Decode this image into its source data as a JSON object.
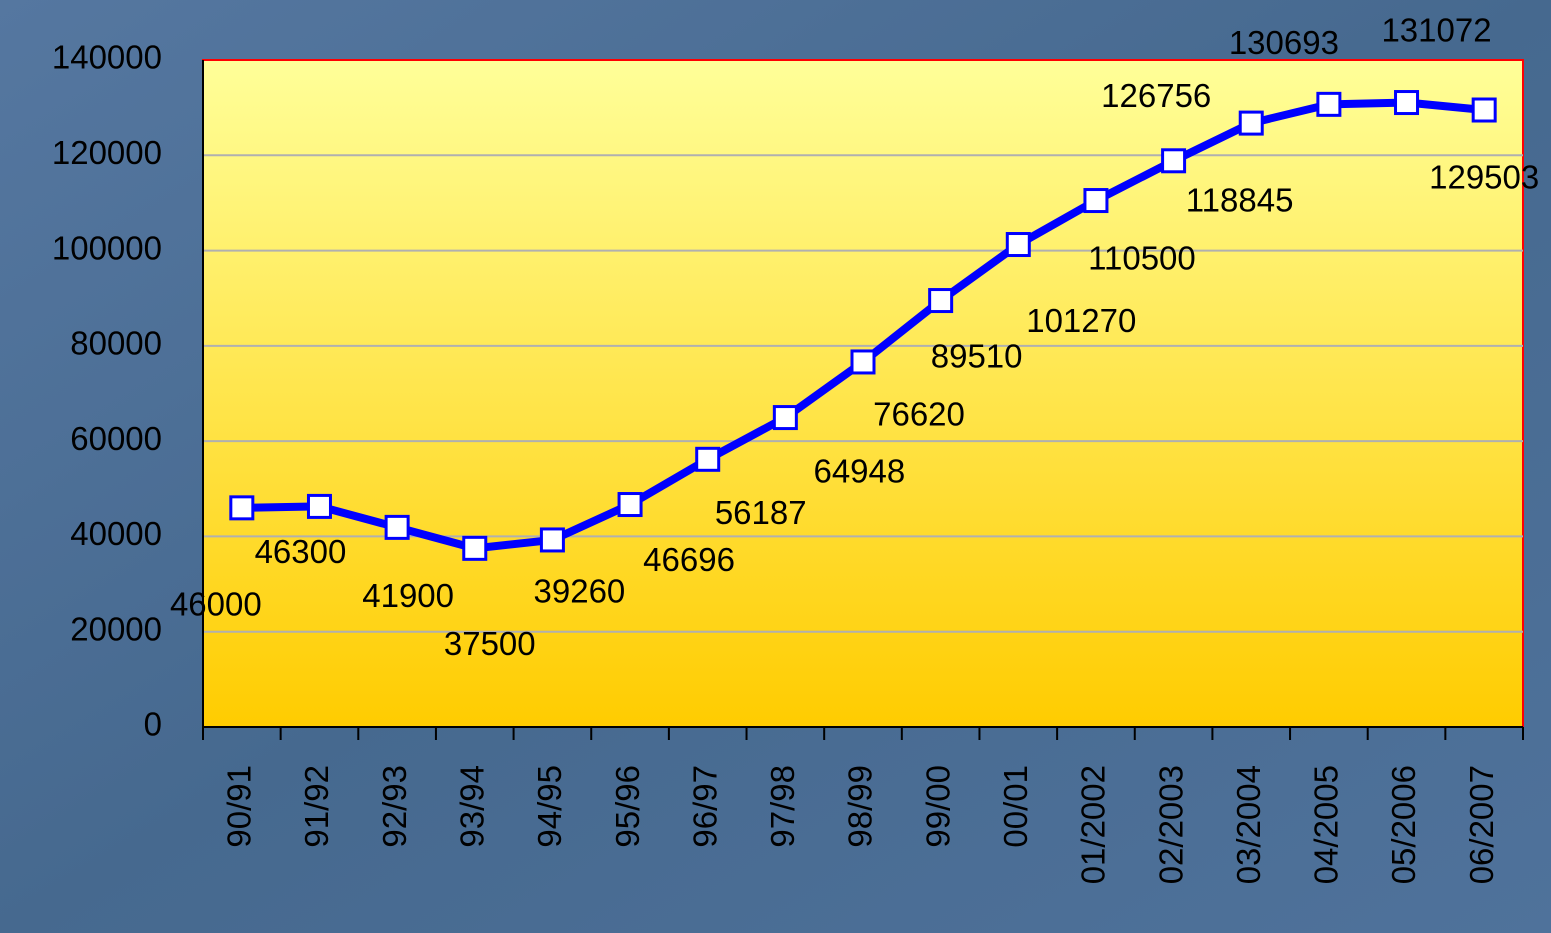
{
  "chart_data": {
    "type": "line",
    "categories": [
      "90/91",
      "91/92",
      "92/93",
      "93/94",
      "94/95",
      "95/96",
      "96/97",
      "97/98",
      "98/99",
      "99/00",
      "00/01",
      "01/2002",
      "02/2003",
      "03/2004",
      "04/2005",
      "05/2006",
      "06/2007"
    ],
    "series": [
      {
        "name": "",
        "color": "#0000ff",
        "values": [
          46000,
          46300,
          41900,
          37500,
          39260,
          46696,
          56187,
          64948,
          76620,
          89510,
          101270,
          110500,
          118845,
          126756,
          130693,
          131072,
          129503
        ]
      }
    ],
    "ylim": [
      0,
      140000
    ],
    "yticks": [
      0,
      20000,
      40000,
      60000,
      80000,
      100000,
      120000,
      140000
    ],
    "grid": true
  }
}
